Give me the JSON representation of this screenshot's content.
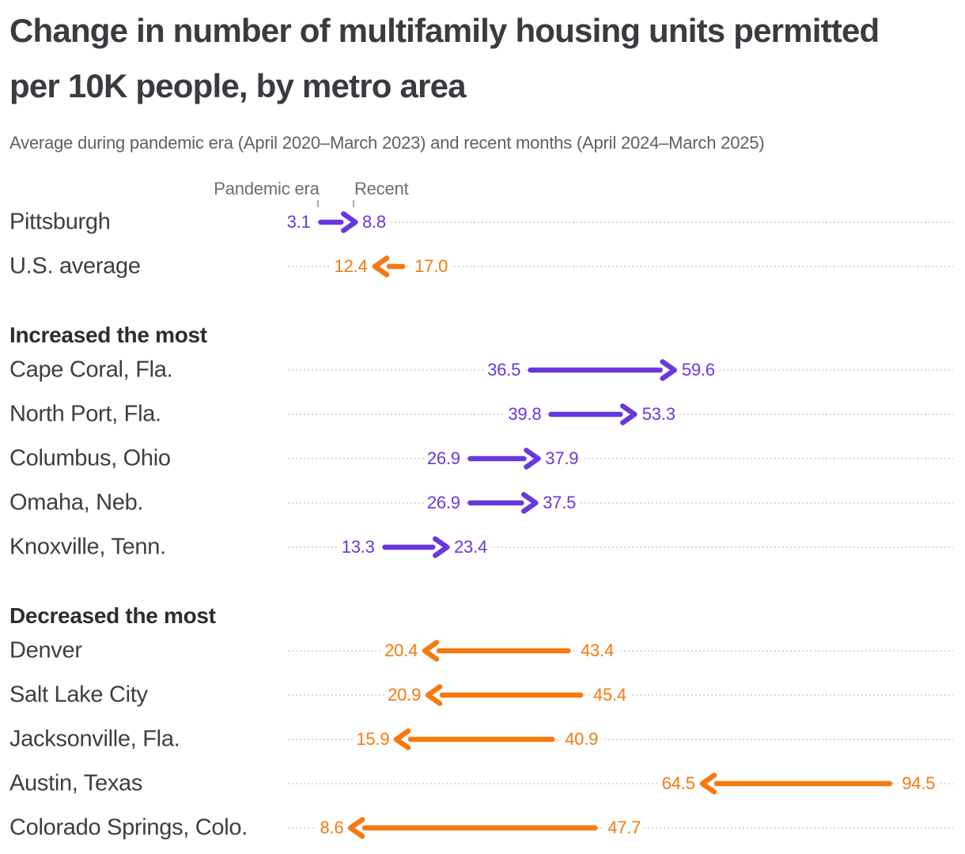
{
  "chart_data": {
    "type": "arrow",
    "title": "Change in number of multifamily housing units permitted per 10K people, by metro area",
    "subtitle": "Average during pandemic era (April 2020–March 2023) and recent months (April 2024–March 2025)",
    "value_unit": "multifamily housing units permitted per 10K people",
    "series_labels": {
      "start": "Pandemic era",
      "end": "Recent"
    },
    "legend_position": "top, anchored to first row values",
    "grid": "dotted horizontal row leaders",
    "xlim": [
      0,
      104
    ],
    "colors": {
      "increase": "#6937DE",
      "decrease": "#F5790F"
    },
    "groups": [
      {
        "header": "",
        "rows": [
          {
            "label": "Pittsburgh",
            "pandemic_era": 3.1,
            "recent": 8.8,
            "change": "increase"
          },
          {
            "label": "U.S. average",
            "pandemic_era": 17.0,
            "recent": 12.4,
            "change": "decrease"
          }
        ]
      },
      {
        "header": "Increased the most",
        "rows": [
          {
            "label": "Cape Coral, Fla.",
            "pandemic_era": 36.5,
            "recent": 59.6,
            "change": "increase"
          },
          {
            "label": "North Port, Fla.",
            "pandemic_era": 39.8,
            "recent": 53.3,
            "change": "increase"
          },
          {
            "label": "Columbus, Ohio",
            "pandemic_era": 26.9,
            "recent": 37.9,
            "change": "increase"
          },
          {
            "label": "Omaha, Neb.",
            "pandemic_era": 26.9,
            "recent": 37.5,
            "change": "increase"
          },
          {
            "label": "Knoxville, Tenn.",
            "pandemic_era": 13.3,
            "recent": 23.4,
            "change": "increase"
          }
        ]
      },
      {
        "header": "Decreased the most",
        "rows": [
          {
            "label": "Denver",
            "pandemic_era": 43.4,
            "recent": 20.4,
            "change": "decrease"
          },
          {
            "label": "Salt Lake City",
            "pandemic_era": 45.4,
            "recent": 20.9,
            "change": "decrease"
          },
          {
            "label": "Jacksonville, Fla.",
            "pandemic_era": 40.9,
            "recent": 15.9,
            "change": "decrease"
          },
          {
            "label": "Austin, Texas",
            "pandemic_era": 94.5,
            "recent": 64.5,
            "change": "decrease"
          },
          {
            "label": "Colorado Springs, Colo.",
            "pandemic_era": 47.7,
            "recent": 8.6,
            "change": "decrease"
          }
        ]
      }
    ]
  }
}
